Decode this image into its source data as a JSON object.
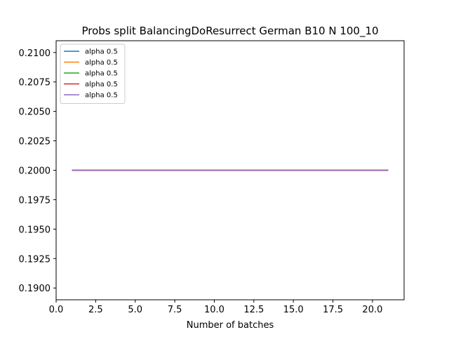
{
  "chart_data": {
    "type": "line",
    "title": "Probs split BalancingDoResurrect German B10 N 100_10",
    "xlabel": "Number of batches",
    "ylabel": "",
    "xlim": [
      0,
      22.0
    ],
    "ylim": [
      0.189,
      0.211
    ],
    "xticks": [
      0.0,
      2.5,
      5.0,
      7.5,
      10.0,
      12.5,
      15.0,
      17.5,
      20.0
    ],
    "xtick_labels": [
      "0.0",
      "2.5",
      "5.0",
      "7.5",
      "10.0",
      "12.5",
      "15.0",
      "17.5",
      "20.0"
    ],
    "yticks": [
      0.19,
      0.1925,
      0.195,
      0.1975,
      0.2,
      0.2025,
      0.205,
      0.2075,
      0.21
    ],
    "ytick_labels": [
      "0.1900",
      "0.1925",
      "0.1950",
      "0.1975",
      "0.2000",
      "0.2025",
      "0.2050",
      "0.2075",
      "0.2100"
    ],
    "grid": false,
    "legend_position": "top-left",
    "x": [
      1,
      2,
      3,
      4,
      5,
      6,
      7,
      8,
      9,
      10,
      11,
      12,
      13,
      14,
      15,
      16,
      17,
      18,
      19,
      20,
      21
    ],
    "series": [
      {
        "name": "alpha 0.5",
        "color": "#1f77b4",
        "values": [
          0.2,
          0.2,
          0.2,
          0.2,
          0.2,
          0.2,
          0.2,
          0.2,
          0.2,
          0.2,
          0.2,
          0.2,
          0.2,
          0.2,
          0.2,
          0.2,
          0.2,
          0.2,
          0.2,
          0.2,
          0.2
        ]
      },
      {
        "name": "alpha 0.5",
        "color": "#ff7f0e",
        "values": [
          0.2,
          0.2,
          0.2,
          0.2,
          0.2,
          0.2,
          0.2,
          0.2,
          0.2,
          0.2,
          0.2,
          0.2,
          0.2,
          0.2,
          0.2,
          0.2,
          0.2,
          0.2,
          0.2,
          0.2,
          0.2
        ]
      },
      {
        "name": "alpha 0.5",
        "color": "#2ca02c",
        "values": [
          0.2,
          0.2,
          0.2,
          0.2,
          0.2,
          0.2,
          0.2,
          0.2,
          0.2,
          0.2,
          0.2,
          0.2,
          0.2,
          0.2,
          0.2,
          0.2,
          0.2,
          0.2,
          0.2,
          0.2,
          0.2
        ]
      },
      {
        "name": "alpha 0.5",
        "color": "#d62728",
        "values": [
          0.2,
          0.2,
          0.2,
          0.2,
          0.2,
          0.2,
          0.2,
          0.2,
          0.2,
          0.2,
          0.2,
          0.2,
          0.2,
          0.2,
          0.2,
          0.2,
          0.2,
          0.2,
          0.2,
          0.2,
          0.2
        ]
      },
      {
        "name": "alpha 0.5",
        "color": "#9467bd",
        "values": [
          0.2,
          0.2,
          0.2,
          0.2,
          0.2,
          0.2,
          0.2,
          0.2,
          0.2,
          0.2,
          0.2,
          0.2,
          0.2,
          0.2,
          0.2,
          0.2,
          0.2,
          0.2,
          0.2,
          0.2,
          0.2
        ]
      }
    ]
  }
}
